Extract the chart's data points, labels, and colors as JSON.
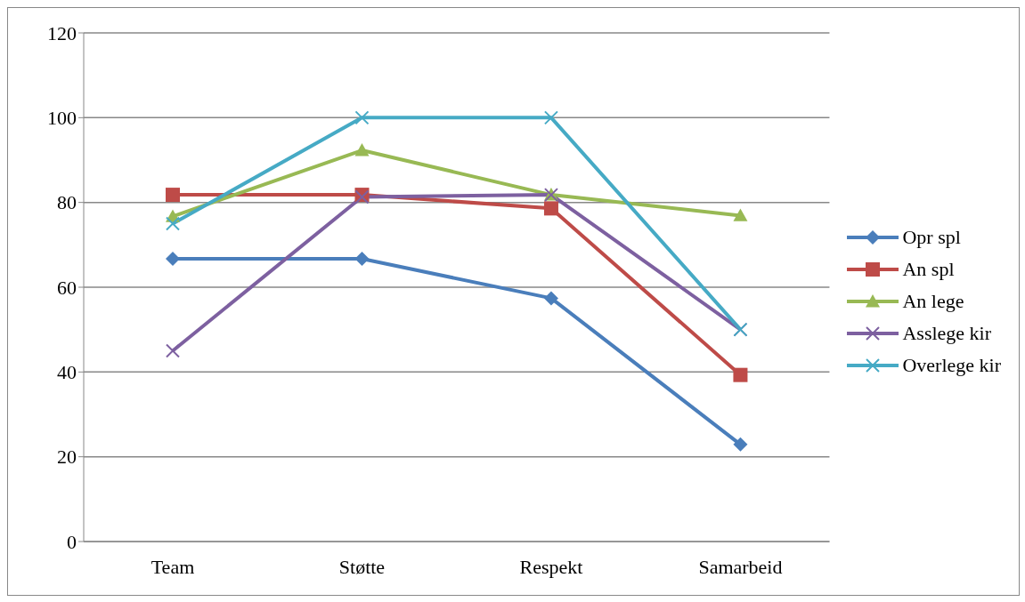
{
  "chart_data": {
    "type": "line",
    "categories": [
      "Team",
      "Støtte",
      "Respekt",
      "Samarbeid"
    ],
    "series": [
      {
        "name": "Opr spl",
        "color": "#4a7ebb",
        "marker": "diamond",
        "values": [
          66.7,
          66.7,
          57.4,
          22.9
        ]
      },
      {
        "name": "An spl",
        "color": "#be4b48",
        "marker": "square",
        "values": [
          81.8,
          81.8,
          78.6,
          39.3
        ]
      },
      {
        "name": "An lege",
        "color": "#98b954",
        "marker": "triangle",
        "values": [
          76.7,
          92.3,
          81.8,
          76.9
        ]
      },
      {
        "name": "Asslege kir",
        "color": "#7d60a0",
        "marker": "cross",
        "values": [
          45,
          81.3,
          81.8,
          50
        ]
      },
      {
        "name": "Overlege kir",
        "color": "#46aac5",
        "marker": "cross",
        "values": [
          75,
          100,
          100,
          50
        ]
      }
    ],
    "ylim": [
      0,
      120
    ],
    "yticks": [
      0,
      20,
      40,
      60,
      80,
      100,
      120
    ],
    "grid": "y",
    "legend": "right"
  }
}
